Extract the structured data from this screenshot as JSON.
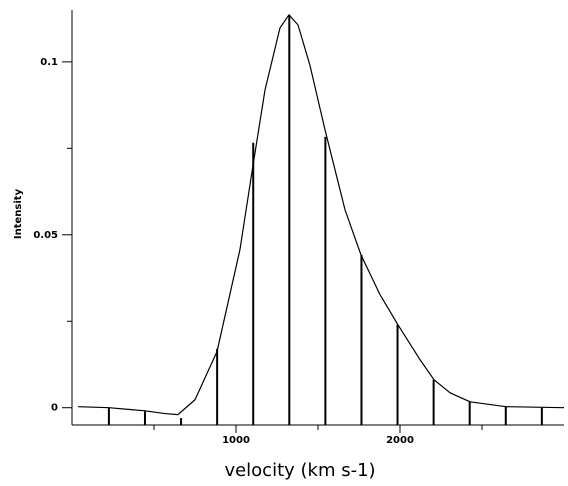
{
  "chart_data": {
    "type": "line",
    "xlabel": "velocity (km s-1)",
    "ylabel": "Intensity",
    "xlim": [
      0,
      3000
    ],
    "ylim": [
      -0.005,
      0.115
    ],
    "xticks": [
      1000,
      2000
    ],
    "xminorticks": [
      500,
      1500,
      2500
    ],
    "yticks": [
      0,
      0.05,
      0.1
    ],
    "yminorticks": [
      0.025,
      0.075
    ],
    "color": "#000000",
    "curve": {
      "x": [
        37,
        226,
        445,
        567,
        646,
        750,
        884,
        1024,
        1104,
        1177,
        1268,
        1323,
        1378,
        1451,
        1543,
        1665,
        1762,
        1878,
        1987,
        2122,
        2207,
        2305,
        2427,
        2646,
        3000
      ],
      "values": [
        0.0003,
        0,
        -0.0009,
        -0.0017,
        -0.002,
        0.0023,
        0.0162,
        0.0457,
        0.0702,
        0.0919,
        0.1098,
        0.1136,
        0.1107,
        0.099,
        0.0803,
        0.0572,
        0.0442,
        0.0327,
        0.024,
        0.0139,
        0.0081,
        0.0043,
        0.0017,
        0.0003,
        0
      ]
    },
    "stems": {
      "x": [
        225,
        445,
        665,
        885,
        1105,
        1325,
        1545,
        1765,
        1985,
        2205,
        2425,
        2645,
        2865
      ],
      "values": [
        0,
        -0.001,
        -0.003,
        0.017,
        0.0766,
        0.1136,
        0.0783,
        0.0442,
        0.024,
        0.0081,
        0.0017,
        0.0003,
        0
      ]
    }
  }
}
